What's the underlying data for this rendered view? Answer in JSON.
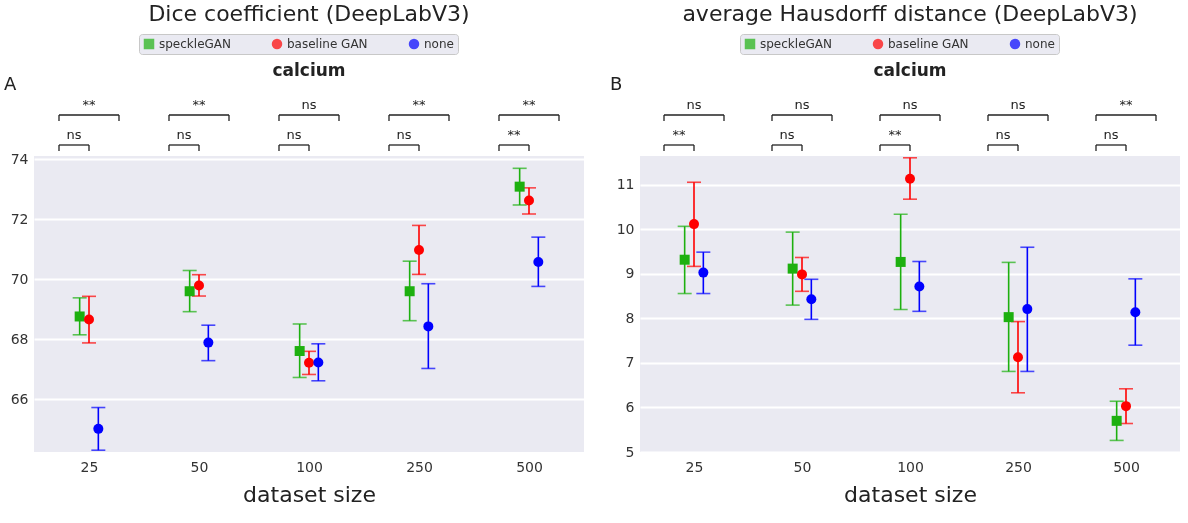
{
  "chart_data": [
    {
      "type": "scatter",
      "title": "Dice coefficient (DeepLabV3)",
      "xlabel": "dataset size",
      "categories": [
        "25",
        "50",
        "100",
        "250",
        "500"
      ],
      "ylim": [
        64.25,
        74.1
      ],
      "yticks": [
        66,
        68,
        70,
        72,
        74
      ],
      "grid": "y",
      "legend": "top",
      "annotations": [
        "A",
        "calcium",
        "**",
        "**",
        "ns",
        "**",
        "**",
        "ns",
        "ns",
        "ns",
        "ns",
        "**"
      ],
      "series": [
        {
          "name": "speckleGAN",
          "color": "#1db00f",
          "marker": "square",
          "values": [
            68.76,
            69.6,
            67.61,
            69.6,
            73.08
          ],
          "errors": [
            [
              68.15,
              69.38
            ],
            [
              68.92,
              70.29
            ],
            [
              66.73,
              68.51
            ],
            [
              68.62,
              70.6
            ],
            [
              72.47,
              73.69
            ]
          ]
        },
        {
          "name": "baseline GAN",
          "color": "#ff0000",
          "marker": "circle",
          "values": [
            68.66,
            69.79,
            67.22,
            70.97,
            72.62
          ],
          "errors": [
            [
              67.88,
              69.43
            ],
            [
              69.44,
              70.15
            ],
            [
              66.83,
              67.6
            ],
            [
              70.16,
              71.79
            ],
            [
              72.17,
              73.04
            ]
          ]
        },
        {
          "name": "none",
          "color": "#0000ff",
          "marker": "circle",
          "values": [
            65.02,
            67.89,
            67.23,
            68.43,
            70.57
          ],
          "errors": [
            [
              64.31,
              65.73
            ],
            [
              67.29,
              68.47
            ],
            [
              66.62,
              67.85
            ],
            [
              67.03,
              69.85
            ],
            [
              69.76,
              71.4
            ]
          ]
        }
      ]
    },
    {
      "type": "scatter",
      "title": "average Hausdorff distance (DeepLabV3)",
      "xlabel": "dataset size",
      "categories": [
        "25",
        "50",
        "100",
        "250",
        "500"
      ],
      "ylim": [
        5,
        11.65
      ],
      "yticks": [
        5,
        6,
        7,
        8,
        9,
        10,
        11
      ],
      "grid": "y",
      "legend": "top",
      "annotations": [
        "B",
        "calcium",
        "ns",
        "ns",
        "ns",
        "ns",
        "**",
        "**",
        "ns",
        "**",
        "ns",
        "ns"
      ],
      "series": [
        {
          "name": "speckleGAN",
          "color": "#1db00f",
          "marker": "square",
          "values": [
            9.32,
            9.12,
            9.27,
            8.03,
            5.7
          ],
          "errors": [
            [
              8.56,
              10.07
            ],
            [
              8.3,
              9.94
            ],
            [
              8.2,
              10.34
            ],
            [
              6.81,
              9.26
            ],
            [
              5.26,
              6.14
            ]
          ]
        },
        {
          "name": "baseline GAN",
          "color": "#ff0000",
          "marker": "circle",
          "values": [
            10.12,
            8.99,
            11.14,
            7.13,
            6.03
          ],
          "errors": [
            [
              9.17,
              11.06
            ],
            [
              8.61,
              9.37
            ],
            [
              10.68,
              11.61
            ],
            [
              6.33,
              7.93
            ],
            [
              5.64,
              6.42
            ]
          ]
        },
        {
          "name": "none",
          "color": "#0000ff",
          "marker": "circle",
          "values": [
            9.03,
            8.43,
            8.72,
            8.21,
            8.14
          ],
          "errors": [
            [
              8.56,
              9.49
            ],
            [
              7.98,
              8.88
            ],
            [
              8.16,
              9.28
            ],
            [
              6.81,
              9.6
            ],
            [
              7.4,
              8.89
            ]
          ]
        }
      ]
    }
  ]
}
